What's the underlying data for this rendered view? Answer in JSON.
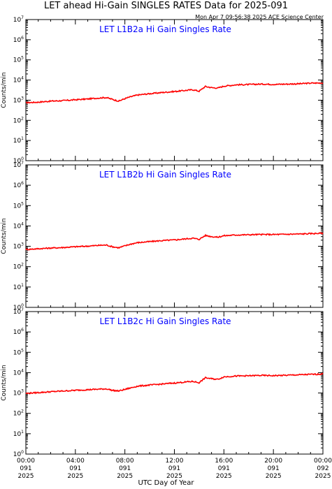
{
  "header": {
    "title": "LET ahead Hi-Gain SINGLES RATES Data for 2025-091",
    "timestamp": "Mon Apr  7 09:56:38 2025 ACE Science Center"
  },
  "xaxis_label": "UTC Day of Year",
  "colors": {
    "trace": "#ff0000",
    "panel_title": "#0000ff",
    "axes": "#000000"
  },
  "chart_data": [
    {
      "type": "line",
      "title": "LET L1B2a Hi Gain Singles Rate",
      "ylabel": "Counts/min",
      "yscale": "log",
      "ylim": [
        1,
        10000000
      ],
      "xlim": [
        0,
        24
      ],
      "x_unit": "hours UTC, day 091 of 2025",
      "x_tick_labels": [
        [
          "00:00",
          "091",
          "2025"
        ],
        [
          "04:00",
          "091",
          "2025"
        ],
        [
          "08:00",
          "091",
          "2025"
        ],
        [
          "12:00",
          "091",
          "2025"
        ],
        [
          "16:00",
          "091",
          "2025"
        ],
        [
          "20:00",
          "091",
          "2025"
        ],
        [
          "00:00",
          "092",
          "2025"
        ]
      ],
      "x_ticks": [
        0,
        4,
        8,
        12,
        16,
        20,
        24
      ],
      "y_ticks": [
        1,
        10,
        100,
        1000,
        10000,
        100000,
        1000000,
        10000000
      ],
      "grid": false,
      "series": [
        {
          "x": [
            0,
            1,
            2,
            3,
            4,
            5,
            6,
            6.5,
            7,
            7.5,
            8,
            8.5,
            9,
            10,
            11,
            12,
            13,
            13.5,
            14,
            14.5,
            15,
            15.5,
            16,
            17,
            18,
            19,
            20,
            21,
            22,
            23,
            24
          ],
          "values": [
            750,
            800,
            900,
            950,
            1050,
            1150,
            1300,
            1350,
            1100,
            900,
            1200,
            1500,
            1800,
            2100,
            2400,
            2700,
            3100,
            3300,
            2800,
            4800,
            4200,
            4000,
            5000,
            5800,
            6000,
            6300,
            6100,
            6300,
            6500,
            7000,
            7200
          ]
        }
      ]
    },
    {
      "type": "line",
      "title": "LET L1B2b Hi Gain Singles Rate",
      "ylabel": "Counts/min",
      "yscale": "log",
      "ylim": [
        1,
        10000000
      ],
      "xlim": [
        0,
        24
      ],
      "x_ticks": [
        0,
        4,
        8,
        12,
        16,
        20,
        24
      ],
      "y_ticks": [
        1,
        10,
        100,
        1000,
        10000,
        100000,
        1000000,
        10000000
      ],
      "grid": false,
      "series": [
        {
          "x": [
            0,
            1,
            2,
            3,
            4,
            5,
            6,
            6.5,
            7,
            7.5,
            8,
            8.5,
            9,
            10,
            11,
            12,
            13,
            13.5,
            14,
            14.5,
            15,
            15.5,
            16,
            17,
            18,
            19,
            20,
            21,
            22,
            23,
            24
          ],
          "values": [
            700,
            760,
            820,
            870,
            950,
            1020,
            1120,
            1150,
            950,
            850,
            1050,
            1300,
            1500,
            1700,
            1900,
            2050,
            2350,
            2500,
            2200,
            3400,
            3000,
            2800,
            3300,
            3600,
            3700,
            3800,
            3800,
            3900,
            4000,
            4200,
            4400
          ]
        }
      ]
    },
    {
      "type": "line",
      "title": "LET L1B2c Hi Gain Singles Rate",
      "ylabel": "Counts/min",
      "yscale": "log",
      "ylim": [
        1,
        10000000
      ],
      "xlim": [
        0,
        24
      ],
      "x_ticks": [
        0,
        4,
        8,
        12,
        16,
        20,
        24
      ],
      "y_ticks": [
        1,
        10,
        100,
        1000,
        10000,
        100000,
        1000000,
        10000000
      ],
      "grid": false,
      "series": [
        {
          "x": [
            0,
            1,
            2,
            3,
            4,
            5,
            6,
            6.5,
            7,
            7.5,
            8,
            8.5,
            9,
            10,
            11,
            12,
            13,
            13.5,
            14,
            14.5,
            15,
            15.5,
            16,
            17,
            18,
            19,
            20,
            21,
            22,
            23,
            24
          ],
          "values": [
            950,
            1050,
            1150,
            1250,
            1350,
            1450,
            1550,
            1600,
            1350,
            1250,
            1500,
            1800,
            2150,
            2450,
            2750,
            3100,
            3500,
            3700,
            3200,
            5600,
            5000,
            4700,
            6200,
            6800,
            7000,
            7300,
            7100,
            7400,
            7800,
            8200,
            8600
          ]
        }
      ]
    }
  ]
}
